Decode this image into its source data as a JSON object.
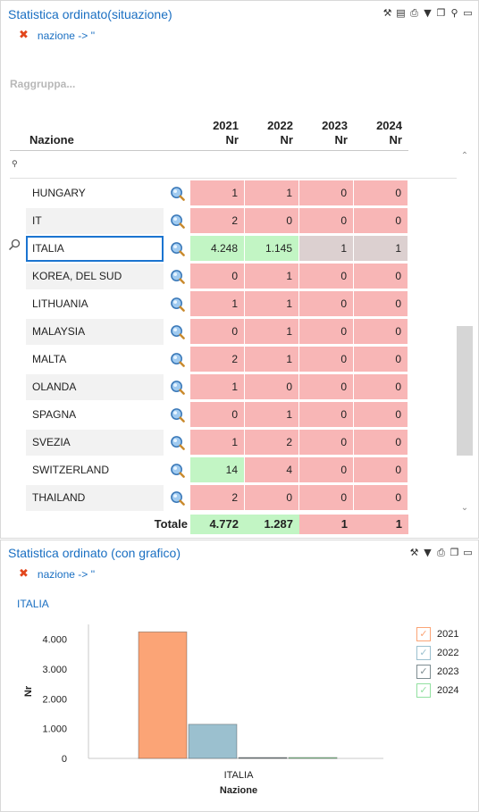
{
  "panel1": {
    "title": "Statistica ordinato(situazione)",
    "filter_text": "nazione -> ''",
    "group_placeholder": "Raggruppa...",
    "columns": [
      {
        "year": "2021",
        "unit": "Nr"
      },
      {
        "year": "2022",
        "unit": "Nr"
      },
      {
        "year": "2023",
        "unit": "Nr"
      },
      {
        "year": "2024",
        "unit": "Nr"
      }
    ],
    "name_header": "Nazione",
    "rows": [
      {
        "name": "HUNGARY",
        "values": [
          "1",
          "1",
          "0",
          "0"
        ],
        "colors": [
          "red",
          "red",
          "red",
          "red"
        ]
      },
      {
        "name": "IT",
        "values": [
          "2",
          "0",
          "0",
          "0"
        ],
        "colors": [
          "red",
          "red",
          "red",
          "red"
        ]
      },
      {
        "name": "ITALIA",
        "values": [
          "4.248",
          "1.145",
          "1",
          "1"
        ],
        "colors": [
          "green",
          "green",
          "grey",
          "grey"
        ],
        "selected": true
      },
      {
        "name": "KOREA, DEL SUD",
        "values": [
          "0",
          "1",
          "0",
          "0"
        ],
        "colors": [
          "red",
          "red",
          "red",
          "red"
        ]
      },
      {
        "name": "LITHUANIA",
        "values": [
          "1",
          "1",
          "0",
          "0"
        ],
        "colors": [
          "red",
          "red",
          "red",
          "red"
        ]
      },
      {
        "name": "MALAYSIA",
        "values": [
          "0",
          "1",
          "0",
          "0"
        ],
        "colors": [
          "red",
          "red",
          "red",
          "red"
        ]
      },
      {
        "name": "MALTA",
        "values": [
          "2",
          "1",
          "0",
          "0"
        ],
        "colors": [
          "red",
          "red",
          "red",
          "red"
        ]
      },
      {
        "name": "OLANDA",
        "values": [
          "1",
          "0",
          "0",
          "0"
        ],
        "colors": [
          "red",
          "red",
          "red",
          "red"
        ]
      },
      {
        "name": "SPAGNA",
        "values": [
          "0",
          "1",
          "0",
          "0"
        ],
        "colors": [
          "red",
          "red",
          "red",
          "red"
        ]
      },
      {
        "name": "SVEZIA",
        "values": [
          "1",
          "2",
          "0",
          "0"
        ],
        "colors": [
          "red",
          "red",
          "red",
          "red"
        ]
      },
      {
        "name": "SWITZERLAND",
        "values": [
          "14",
          "4",
          "0",
          "0"
        ],
        "colors": [
          "green",
          "red",
          "red",
          "red"
        ]
      },
      {
        "name": "THAILAND",
        "values": [
          "2",
          "0",
          "0",
          "0"
        ],
        "colors": [
          "red",
          "red",
          "red",
          "red"
        ]
      }
    ],
    "totals": {
      "label": "Totale",
      "values": [
        "4.772",
        "1.287",
        "1",
        "1"
      ],
      "colors": [
        "green",
        "green",
        "red",
        "red"
      ]
    }
  },
  "panel2": {
    "title": "Statistica ordinato (con grafico)",
    "filter_text": "nazione -> ''",
    "selected_label": "ITALIA"
  },
  "colors": {
    "cell_red": "#f8b6b6",
    "cell_green": "#c2f5c4",
    "cell_grey": "#dcd0d0",
    "title_blue": "#1a6fc2",
    "close_red": "#e2461c"
  },
  "icons": {
    "toolbar1": [
      "tools-icon",
      "save-icon",
      "export-icon",
      "filter-icon",
      "copy-icon",
      "search-icon",
      "maximize-icon"
    ],
    "toolbar2": [
      "tools-icon",
      "filter-clear-icon",
      "print-icon",
      "copy-icon",
      "maximize-icon"
    ]
  },
  "chart_data": {
    "type": "bar",
    "categories": [
      "ITALIA"
    ],
    "series": [
      {
        "name": "2021",
        "values": [
          4248
        ],
        "color": "#fba476"
      },
      {
        "name": "2022",
        "values": [
          1145
        ],
        "color": "#9bc0cf"
      },
      {
        "name": "2023",
        "values": [
          1
        ],
        "color": "#7e8d91"
      },
      {
        "name": "2024",
        "values": [
          1
        ],
        "color": "#92e0a0"
      }
    ],
    "xlabel": "Nazione",
    "ylabel": "Nr",
    "ylim": [
      0,
      4500
    ],
    "yticks": [
      "0",
      "1.000",
      "2.000",
      "3.000",
      "4.000"
    ],
    "legend_position": "right"
  }
}
